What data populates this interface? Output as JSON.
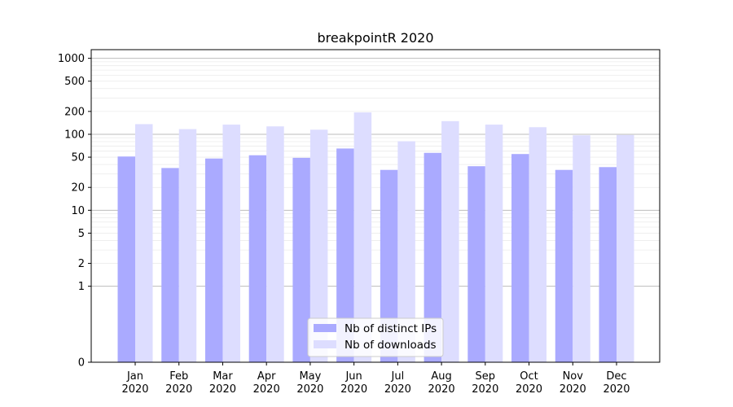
{
  "chart_data": {
    "type": "bar",
    "title": "breakpointR 2020",
    "xlabel": "",
    "ylabel": "",
    "yscale": "symlog",
    "ylim": [
      0,
      1300
    ],
    "y_ticks": [
      0,
      1,
      2,
      5,
      10,
      20,
      50,
      100,
      200,
      500,
      1000
    ],
    "categories": [
      "Jan\n2020",
      "Feb\n2020",
      "Mar\n2020",
      "Apr\n2020",
      "May\n2020",
      "Jun\n2020",
      "Jul\n2020",
      "Aug\n2020",
      "Sep\n2020",
      "Oct\n2020",
      "Nov\n2020",
      "Dec\n2020"
    ],
    "series": [
      {
        "name": "Nb of distinct IPs",
        "color": "#aaaaff",
        "values": [
          51,
          36,
          48,
          53,
          49,
          65,
          34,
          57,
          38,
          55,
          34,
          37
        ]
      },
      {
        "name": "Nb of downloads",
        "color": "#ddddff",
        "values": [
          136,
          117,
          134,
          127,
          115,
          194,
          81,
          149,
          134,
          124,
          97,
          98
        ]
      }
    ],
    "grid": true,
    "legend_position": "bottom-center"
  }
}
